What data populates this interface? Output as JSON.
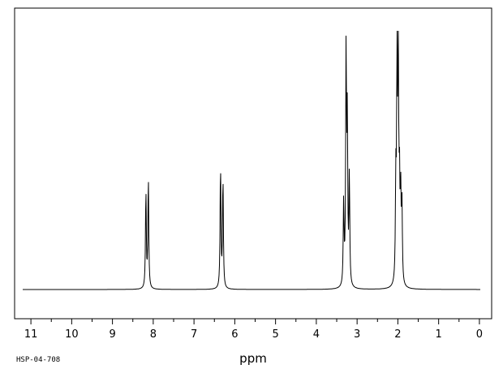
{
  "chart_data": {
    "type": "line",
    "xlabel": "ppm",
    "x_reversed": true,
    "xlim": [
      11.4,
      -0.3
    ],
    "xticks": [
      11,
      10,
      9,
      8,
      7,
      6,
      5,
      4,
      3,
      2,
      1,
      0
    ],
    "xtick_labels": [
      "11",
      "10",
      "9",
      "8",
      "7",
      "6",
      "5",
      "4",
      "3",
      "2",
      "1",
      "0"
    ],
    "ylim": [
      0,
      1
    ],
    "grid": false,
    "legend": "none",
    "peaks": [
      {
        "ppm": 8.18,
        "height": 0.38
      },
      {
        "ppm": 8.12,
        "height": 0.43
      },
      {
        "ppm": 6.35,
        "height": 0.48
      },
      {
        "ppm": 6.29,
        "height": 0.43
      },
      {
        "ppm": 3.33,
        "height": 0.32
      },
      {
        "ppm": 3.27,
        "height": 0.9
      },
      {
        "ppm": 3.24,
        "height": 0.61
      },
      {
        "ppm": 3.19,
        "height": 0.42
      },
      {
        "ppm": 2.05,
        "height": 0.38
      },
      {
        "ppm": 2.02,
        "height": 0.83
      },
      {
        "ppm": 1.99,
        "height": 0.87
      },
      {
        "ppm": 1.96,
        "height": 0.35
      },
      {
        "ppm": 1.93,
        "height": 0.32
      },
      {
        "ppm": 1.9,
        "height": 0.3
      }
    ],
    "line_color": "#000000"
  },
  "footer": {
    "code": "HSP-04-708"
  }
}
